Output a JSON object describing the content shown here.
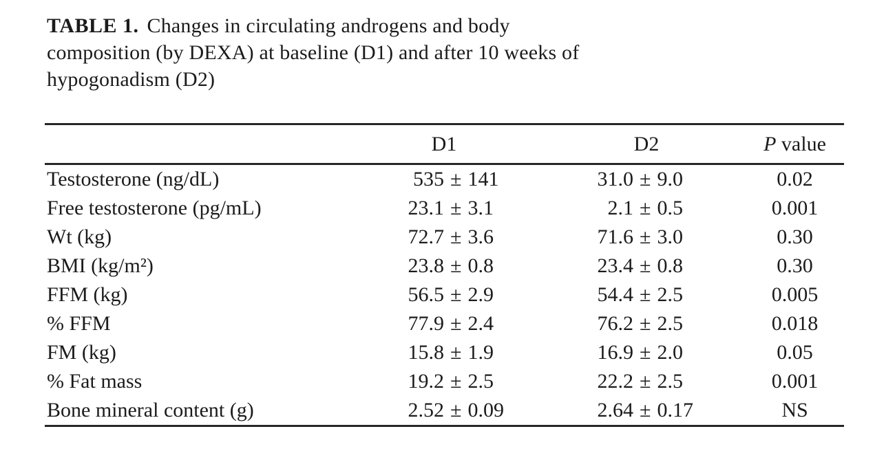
{
  "title": {
    "label": "TABLE 1.",
    "line1": "Changes in circulating androgens and body",
    "line2": "composition (by DEXA) at baseline (D1) and after 10 weeks of",
    "line3": "hypogonadism (D2)"
  },
  "symbols": {
    "pm": "±"
  },
  "table": {
    "columns": {
      "label": "",
      "d1": "D1",
      "d2": "D2",
      "p_italic": "P",
      "p_rest": " value"
    },
    "rows": [
      {
        "label": "Testosterone (ng/dL)",
        "d1": {
          "mean": "535",
          "sd": "141"
        },
        "d2": {
          "mean": "31.0",
          "sd": "9.0"
        },
        "p": "0.02"
      },
      {
        "label": "Free testosterone (pg/mL)",
        "d1": {
          "mean": "23.1",
          "sd": "3.1"
        },
        "d2": {
          "mean": "2.1",
          "sd": "0.5"
        },
        "p": "0.001"
      },
      {
        "label": "Wt (kg)",
        "d1": {
          "mean": "72.7",
          "sd": "3.6"
        },
        "d2": {
          "mean": "71.6",
          "sd": "3.0"
        },
        "p": "0.30"
      },
      {
        "label": "BMI (kg/m²)",
        "d1": {
          "mean": "23.8",
          "sd": "0.8"
        },
        "d2": {
          "mean": "23.4",
          "sd": "0.8"
        },
        "p": "0.30"
      },
      {
        "label": "FFM (kg)",
        "d1": {
          "mean": "56.5",
          "sd": "2.9"
        },
        "d2": {
          "mean": "54.4",
          "sd": "2.5"
        },
        "p": "0.005"
      },
      {
        "label": "% FFM",
        "d1": {
          "mean": "77.9",
          "sd": "2.4"
        },
        "d2": {
          "mean": "76.2",
          "sd": "2.5"
        },
        "p": "0.018"
      },
      {
        "label": "FM (kg)",
        "d1": {
          "mean": "15.8",
          "sd": "1.9"
        },
        "d2": {
          "mean": "16.9",
          "sd": "2.0"
        },
        "p": "0.05"
      },
      {
        "label": "% Fat mass",
        "d1": {
          "mean": "19.2",
          "sd": "2.5"
        },
        "d2": {
          "mean": "22.2",
          "sd": "2.5"
        },
        "p": "0.001"
      },
      {
        "label": "Bone mineral content (g)",
        "d1": {
          "mean": "2.52",
          "sd": "0.09"
        },
        "d2": {
          "mean": "2.64",
          "sd": "0.17"
        },
        "p": "NS"
      }
    ]
  },
  "chart_data": {
    "type": "table",
    "title": "TABLE 1. Changes in circulating androgens and body composition (by DEXA) at baseline (D1) and after 10 weeks of hypogonadism (D2)",
    "columns": [
      "",
      "D1",
      "D2",
      "P value"
    ],
    "rows": [
      [
        "Testosterone (ng/dL)",
        "535 ± 141",
        "31.0 ± 9.0",
        "0.02"
      ],
      [
        "Free testosterone (pg/mL)",
        "23.1 ± 3.1",
        "2.1 ± 0.5",
        "0.001"
      ],
      [
        "Wt (kg)",
        "72.7 ± 3.6",
        "71.6 ± 3.0",
        "0.30"
      ],
      [
        "BMI (kg/m²)",
        "23.8 ± 0.8",
        "23.4 ± 0.8",
        "0.30"
      ],
      [
        "FFM (kg)",
        "56.5 ± 2.9",
        "54.4 ± 2.5",
        "0.005"
      ],
      [
        "% FFM",
        "77.9 ± 2.4",
        "76.2 ± 2.5",
        "0.018"
      ],
      [
        "FM (kg)",
        "15.8 ± 1.9",
        "16.9 ± 2.0",
        "0.05"
      ],
      [
        "% Fat mass",
        "19.2 ± 2.5",
        "22.2 ± 2.5",
        "0.001"
      ],
      [
        "Bone mineral content (g)",
        "2.52 ± 0.09",
        "2.64 ± 0.17",
        "NS"
      ]
    ]
  }
}
